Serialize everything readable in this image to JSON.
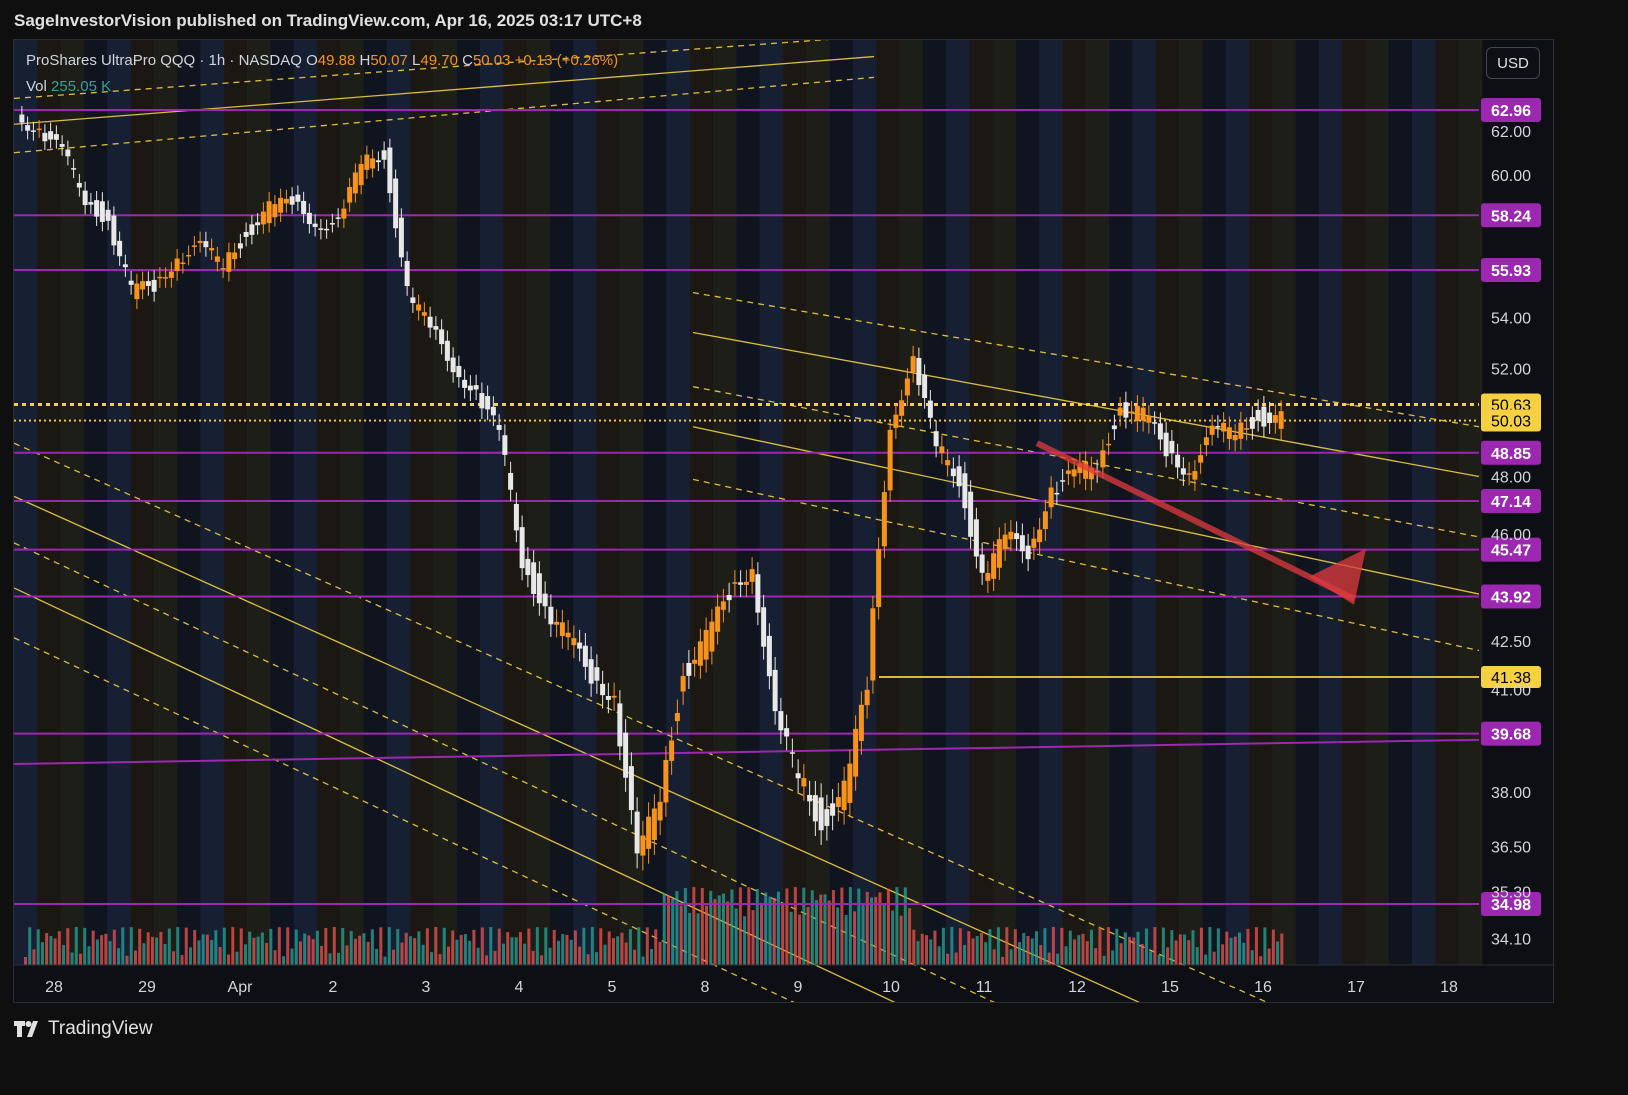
{
  "header": {
    "publisher": "SageInvestorVision published on TradingView.com, Apr 16, 2025 03:17 UTC+8"
  },
  "legend": {
    "symbol": "ProShares UltraPro QQQ · 1h · NASDAQ",
    "o_label": "O",
    "o_val": "49.88",
    "h_label": "H",
    "h_val": "50.07",
    "l_label": "L",
    "l_val": "49.70",
    "c_label": "C",
    "c_val": "50.03",
    "change": "+0.13 (+0.26%)",
    "vol_label": "Vol",
    "vol_val": "255.05 K"
  },
  "currency_button": "USD",
  "footer": {
    "brand": "TradingView"
  },
  "colors": {
    "up": "#f7931a",
    "down": "#e8e8e8",
    "level": "#9c27b0",
    "level_label": "#9c27b0",
    "channel": "#f0d040",
    "volume_up": "#26a69a",
    "volume_down": "#ef5350",
    "arrow": "#e03a3e"
  },
  "chart_data": {
    "type": "candlestick",
    "symbol": "TQQQ",
    "interval": "1h",
    "y_range": [
      33.0,
      66.0
    ],
    "y_ticks": [
      "62.00",
      "60.00",
      "54.00",
      "52.00",
      "48.00",
      "46.00",
      "42.50",
      "41.00",
      "38.00",
      "36.50",
      "35.30",
      "34.10"
    ],
    "x_ticks": [
      "28",
      "29",
      "Apr",
      "2",
      "3",
      "4",
      "5",
      "8",
      "9",
      "10",
      "11",
      "12",
      "15",
      "16",
      "17",
      "18"
    ],
    "levels": [
      {
        "label": "62.96",
        "value": 62.96
      },
      {
        "label": "58.24",
        "value": 58.24
      },
      {
        "label": "55.93",
        "value": 55.93
      },
      {
        "label": "48.85",
        "value": 48.85
      },
      {
        "label": "47.14",
        "value": 47.14
      },
      {
        "label": "45.47",
        "value": 45.47
      },
      {
        "label": "43.92",
        "value": 43.92
      },
      {
        "label": "39.68",
        "value": 39.68
      },
      {
        "label": "34.98",
        "value": 34.98
      }
    ],
    "yellow_levels": [
      {
        "label": "50.63",
        "value": 50.63
      },
      {
        "label": "50.03",
        "value": 50.03
      },
      {
        "label": "41.38",
        "value": 41.38
      }
    ],
    "close_path": [
      [
        0,
        62.7
      ],
      [
        1,
        62.0
      ],
      [
        2,
        61.0
      ],
      [
        3,
        59.0
      ],
      [
        4,
        58.0
      ],
      [
        5,
        55.0
      ],
      [
        6,
        55.3
      ],
      [
        7,
        56.5
      ],
      [
        8,
        56.8
      ],
      [
        9,
        56.2
      ],
      [
        10,
        57.5
      ],
      [
        11,
        58.5
      ],
      [
        12,
        58.8
      ],
      [
        13,
        58.0
      ],
      [
        14,
        57.8
      ],
      [
        15,
        60.5
      ],
      [
        16,
        61.0
      ],
      [
        17,
        55.0
      ],
      [
        18,
        53.5
      ],
      [
        19,
        52.2
      ],
      [
        20,
        51.0
      ],
      [
        21,
        49.5
      ],
      [
        22,
        45.2
      ],
      [
        23,
        43.5
      ],
      [
        24,
        42.5
      ],
      [
        25,
        41.5
      ],
      [
        26,
        40.8
      ],
      [
        27,
        36.0
      ],
      [
        28,
        38.0
      ],
      [
        29,
        41.5
      ],
      [
        30,
        42.5
      ],
      [
        31,
        44.0
      ],
      [
        32,
        45.0
      ],
      [
        33,
        40.0
      ],
      [
        34,
        38.5
      ],
      [
        35,
        37.2
      ],
      [
        36,
        38.0
      ],
      [
        37,
        41.0
      ],
      [
        38,
        50.0
      ],
      [
        39,
        52.2
      ],
      [
        40,
        49.0
      ],
      [
        41,
        48.0
      ],
      [
        42,
        44.5
      ],
      [
        43,
        45.8
      ],
      [
        44,
        45.5
      ],
      [
        45,
        47.5
      ],
      [
        46,
        48.0
      ],
      [
        47,
        48.5
      ],
      [
        48,
        50.5
      ],
      [
        49,
        50.2
      ],
      [
        50,
        49.0
      ],
      [
        51,
        48.2
      ],
      [
        52,
        49.5
      ],
      [
        53,
        49.7
      ],
      [
        54,
        50.2
      ],
      [
        55,
        50.03
      ]
    ],
    "arrow": {
      "from": [
        56,
        49.2
      ],
      "to": [
        60,
        44.5
      ]
    }
  }
}
